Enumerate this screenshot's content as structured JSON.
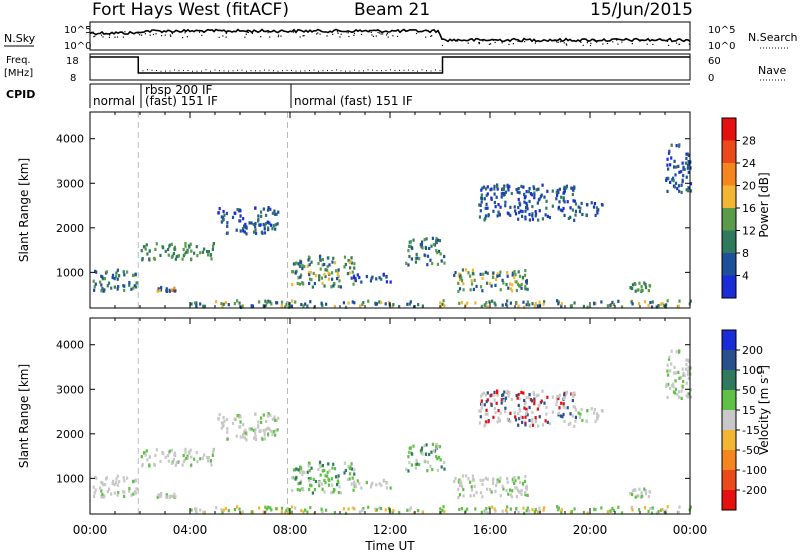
{
  "header": {
    "station": "Fort Hays West (fitACF)",
    "beam": "Beam 21",
    "date": "15/Jun/2015"
  },
  "strip": {
    "left_labels": {
      "nsky": "N.Sky",
      "freq_line1": "Freq.",
      "freq_line2": "[MHz]",
      "cpid": "CPID"
    },
    "right_labels": {
      "nsearch": "N.Search",
      "nave": "Nave"
    },
    "noise_ticks_left": [
      "10^5",
      "10^0"
    ],
    "noise_ticks_right": [
      "10^5",
      "10^0"
    ],
    "freq_ticks_left": [
      "18",
      "8"
    ],
    "nave_ticks_right": [
      "60",
      "0"
    ],
    "cpid_segments": [
      {
        "label": "normal",
        "start_h": 0.0,
        "end_h": 1.93
      },
      {
        "label": "rbsp 200 IF",
        "start_h": 1.93,
        "end_h": 7.9
      },
      {
        "label": "(fast) 151 IF",
        "start_h": 1.93,
        "end_h": 7.9
      },
      {
        "label": "normal (fast) 151 IF",
        "start_h": 7.9,
        "end_h": 24.0
      }
    ],
    "freq_step_h": [
      1.93,
      14.1
    ]
  },
  "time_axis": {
    "label": "Time UT",
    "ticks": [
      "00:00",
      "04:00",
      "08:00",
      "12:00",
      "16:00",
      "20:00",
      "00:00"
    ],
    "tick_hours": [
      0,
      4,
      8,
      12,
      16,
      20,
      24
    ]
  },
  "range_axis": {
    "label": "Slant Range [km]",
    "ticks": [
      "1000",
      "2000",
      "3000",
      "4000"
    ],
    "tick_values": [
      1000,
      2000,
      3000,
      4000
    ],
    "ylim": [
      200,
      4600
    ]
  },
  "power_scale": {
    "label": "Power [dB]",
    "ticks": [
      "4",
      "8",
      "12",
      "16",
      "20",
      "24",
      "28"
    ],
    "colors": [
      "#1a2bd8",
      "#1d4f9a",
      "#2f7a5e",
      "#5a9b4a",
      "#f2b632",
      "#f5861f",
      "#ec4a1a",
      "#e61010"
    ]
  },
  "velocity_scale": {
    "label": "Velocity [m s",
    "label_sup": "-1",
    "label_close": "]",
    "ticks": [
      "200",
      "100",
      "50",
      "15",
      "-15",
      "-50",
      "-100",
      "-200"
    ],
    "colors": [
      "#1a2bd8",
      "#2a4f8f",
      "#2f7a5e",
      "#60c045",
      "#c8c8c8",
      "#f2b632",
      "#f5861f",
      "#ec4a1a",
      "#e61010"
    ]
  },
  "chart_data": {
    "type": "heatmap",
    "title": "Fort Hays West (fitACF)",
    "xlabel": "Time UT",
    "ylabel": "Slant Range [km]",
    "xlim": [
      0,
      24
    ],
    "ylim": [
      200,
      4600
    ],
    "panels": [
      "Power [dB]",
      "Velocity [m s-1]"
    ],
    "scatter_regions": [
      {
        "t": [
          0.1,
          1.9
        ],
        "r": [
          600,
          1100
        ],
        "power": "green-blue",
        "velocity": "grey"
      },
      {
        "t": [
          2.0,
          5.0
        ],
        "r": [
          1300,
          1700
        ],
        "power": "green",
        "velocity": "grey"
      },
      {
        "t": [
          2.6,
          3.4
        ],
        "r": [
          600,
          700
        ],
        "power": "orange-blue",
        "velocity": "grey"
      },
      {
        "t": [
          5.0,
          7.5
        ],
        "r": [
          1900,
          2500
        ],
        "power": "blue",
        "velocity": "grey"
      },
      {
        "t": [
          8.0,
          10.6
        ],
        "r": [
          700,
          1400
        ],
        "power": "green-yellow",
        "velocity": "green"
      },
      {
        "t": [
          10.3,
          12.0
        ],
        "r": [
          800,
          1000
        ],
        "power": "blue",
        "velocity": "grey"
      },
      {
        "t": [
          12.6,
          14.2
        ],
        "r": [
          1200,
          1800
        ],
        "power": "blue-green",
        "velocity": "green"
      },
      {
        "t": [
          14.5,
          17.5
        ],
        "r": [
          600,
          1100
        ],
        "power": "green-yellow",
        "velocity": "grey"
      },
      {
        "t": [
          15.5,
          19.5
        ],
        "r": [
          2200,
          3000
        ],
        "power": "blue",
        "velocity": "grey-red"
      },
      {
        "t": [
          19.5,
          20.5
        ],
        "r": [
          2300,
          2600
        ],
        "power": "blue",
        "velocity": "grey"
      },
      {
        "t": [
          21.5,
          22.4
        ],
        "r": [
          600,
          800
        ],
        "power": "green",
        "velocity": "grey"
      },
      {
        "t": [
          23.0,
          24.0
        ],
        "r": [
          2800,
          3900
        ],
        "power": "blue",
        "velocity": "grey"
      },
      {
        "t": [
          4.0,
          24.0
        ],
        "r": [
          250,
          400
        ],
        "power": "blue-yellow",
        "velocity": "green-yellow"
      }
    ]
  }
}
